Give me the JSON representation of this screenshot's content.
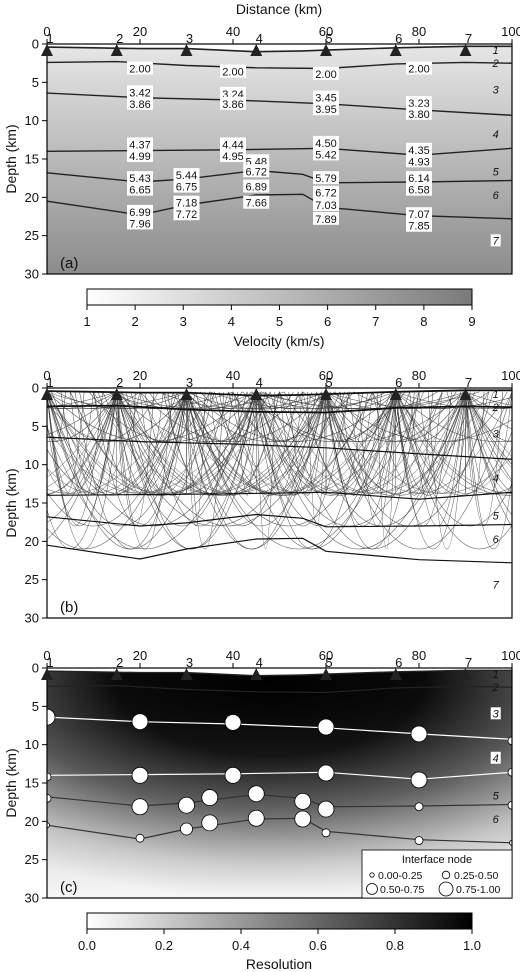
{
  "figure": {
    "top_axis_title": "Distance (km)",
    "y_axis_title": "Depth (km)",
    "x_ticks": [
      0,
      20,
      40,
      60,
      80,
      100
    ],
    "y_ticks": [
      0,
      5,
      10,
      15,
      20,
      25,
      30
    ],
    "stations": [
      {
        "label": "1",
        "x": 0
      },
      {
        "label": "2",
        "x": 15
      },
      {
        "label": "3",
        "x": 30
      },
      {
        "label": "4",
        "x": 45
      },
      {
        "label": "5",
        "x": 60
      },
      {
        "label": "6",
        "x": 75
      },
      {
        "label": "7",
        "x": 90
      }
    ],
    "layer_labels": [
      {
        "label": "1",
        "x": 96.5,
        "y": 1.2
      },
      {
        "label": "2",
        "x": 96.5,
        "y": 2.9
      },
      {
        "label": "3",
        "x": 96.5,
        "y": 6.3
      },
      {
        "label": "4",
        "x": 96.5,
        "y": 12.1
      },
      {
        "label": "5",
        "x": 96.5,
        "y": 17.0
      },
      {
        "label": "6",
        "x": 96.5,
        "y": 20.1
      },
      {
        "label": "7",
        "x": 96.5,
        "y": 26.0
      }
    ]
  },
  "chart_data": [
    {
      "type": "heatmap",
      "panel_label": "(a)",
      "xlabel": "Distance (km)",
      "ylabel": "Depth (km)",
      "xlim": [
        0,
        100
      ],
      "ylim": [
        30,
        0
      ],
      "interfaces": [
        {
          "name": "topography",
          "points": [
            [
              0,
              0.4
            ],
            [
              10,
              0.5
            ],
            [
              20,
              0.6
            ],
            [
              30,
              0.6
            ],
            [
              45,
              1.0
            ],
            [
              55,
              0.9
            ],
            [
              60,
              0.8
            ],
            [
              75,
              0.5
            ],
            [
              90,
              0.3
            ],
            [
              100,
              0.3
            ]
          ]
        },
        {
          "name": "interface-1",
          "points": [
            [
              0,
              2.4
            ],
            [
              15,
              2.3
            ],
            [
              30,
              2.8
            ],
            [
              45,
              3.1
            ],
            [
              60,
              3.2
            ],
            [
              75,
              2.6
            ],
            [
              90,
              2.4
            ],
            [
              100,
              2.5
            ]
          ]
        },
        {
          "name": "interface-2",
          "points": [
            [
              0,
              6.4
            ],
            [
              20,
              7.0
            ],
            [
              40,
              7.3
            ],
            [
              60,
              7.8
            ],
            [
              80,
              8.6
            ],
            [
              100,
              9.3
            ]
          ]
        },
        {
          "name": "interface-3",
          "points": [
            [
              0,
              14.0
            ],
            [
              20,
              13.9
            ],
            [
              40,
              13.8
            ],
            [
              60,
              13.6
            ],
            [
              80,
              14.5
            ],
            [
              100,
              13.6
            ]
          ]
        },
        {
          "name": "interface-4",
          "points": [
            [
              0,
              16.8
            ],
            [
              20,
              18.0
            ],
            [
              30,
              17.6
            ],
            [
              45,
              16.5
            ],
            [
              55,
              17.0
            ],
            [
              60,
              18.1
            ],
            [
              80,
              18.0
            ],
            [
              100,
              17.8
            ]
          ]
        },
        {
          "name": "interface-5",
          "points": [
            [
              0,
              20.5
            ],
            [
              20,
              22.3
            ],
            [
              30,
              21.0
            ],
            [
              45,
              19.7
            ],
            [
              55,
              19.6
            ],
            [
              60,
              21.3
            ],
            [
              80,
              22.4
            ],
            [
              100,
              22.8
            ]
          ]
        }
      ],
      "velocity_labels": [
        {
          "text": "2.00",
          "x": 20,
          "y": 3.2
        },
        {
          "text": "2.00",
          "x": 40,
          "y": 3.6
        },
        {
          "text": "2.00",
          "x": 60,
          "y": 3.9
        },
        {
          "text": "2.00",
          "x": 80,
          "y": 3.2
        },
        {
          "text": "3.42",
          "x": 20,
          "y": 6.3
        },
        {
          "text": "3.86",
          "x": 20,
          "y": 7.8
        },
        {
          "text": "3.24",
          "x": 40,
          "y": 6.5
        },
        {
          "text": "3.86",
          "x": 40,
          "y": 7.8
        },
        {
          "text": "3.45",
          "x": 60,
          "y": 7.0
        },
        {
          "text": "3.95",
          "x": 60,
          "y": 8.5
        },
        {
          "text": "3.23",
          "x": 80,
          "y": 7.7
        },
        {
          "text": "3.80",
          "x": 80,
          "y": 9.1
        },
        {
          "text": "4.37",
          "x": 20,
          "y": 13.1
        },
        {
          "text": "4.99",
          "x": 20,
          "y": 14.6
        },
        {
          "text": "4.44",
          "x": 40,
          "y": 13.1
        },
        {
          "text": "4.95",
          "x": 40,
          "y": 14.6
        },
        {
          "text": "4.50",
          "x": 60,
          "y": 12.9
        },
        {
          "text": "5.42",
          "x": 60,
          "y": 14.4
        },
        {
          "text": "4.35",
          "x": 80,
          "y": 13.8
        },
        {
          "text": "4.93",
          "x": 80,
          "y": 15.3
        },
        {
          "text": "5.48",
          "x": 45,
          "y": 15.3
        },
        {
          "text": "5.43",
          "x": 20,
          "y": 17.5
        },
        {
          "text": "6.65",
          "x": 20,
          "y": 19.0
        },
        {
          "text": "5.44",
          "x": 30,
          "y": 17.1
        },
        {
          "text": "6.75",
          "x": 30,
          "y": 18.6
        },
        {
          "text": "6.72",
          "x": 45,
          "y": 16.6
        },
        {
          "text": "6.89",
          "x": 45,
          "y": 18.6
        },
        {
          "text": "5.79",
          "x": 60,
          "y": 17.5
        },
        {
          "text": "6.72",
          "x": 60,
          "y": 19.4
        },
        {
          "text": "6.14",
          "x": 80,
          "y": 17.5
        },
        {
          "text": "6.58",
          "x": 80,
          "y": 19.0
        },
        {
          "text": "7.18",
          "x": 30,
          "y": 20.7
        },
        {
          "text": "7.72",
          "x": 30,
          "y": 22.2
        },
        {
          "text": "7.66",
          "x": 45,
          "y": 20.7
        },
        {
          "text": "6.99",
          "x": 20,
          "y": 21.9
        },
        {
          "text": "7.96",
          "x": 20,
          "y": 23.4
        },
        {
          "text": "7.03",
          "x": 60,
          "y": 21.0
        },
        {
          "text": "7.89",
          "x": 60,
          "y": 22.8
        },
        {
          "text": "7.07",
          "x": 80,
          "y": 22.2
        },
        {
          "text": "7.85",
          "x": 80,
          "y": 23.7
        }
      ],
      "colorbar": {
        "label": "Velocity (km/s)",
        "min": 1,
        "max": 9,
        "ticks": [
          1,
          2,
          3,
          4,
          5,
          6,
          7,
          8,
          9
        ]
      }
    },
    {
      "type": "line",
      "panel_label": "(b)",
      "xlabel": "",
      "ylabel": "Depth (km)",
      "xlim": [
        0,
        100
      ],
      "ylim": [
        30,
        0
      ],
      "ray_reflectors": [
        2.7,
        7.0,
        14.0,
        18.0,
        21.0
      ],
      "stations_x": [
        0,
        15,
        30,
        45,
        60,
        75,
        90
      ]
    },
    {
      "type": "heatmap",
      "panel_label": "(c)",
      "xlabel": "",
      "ylabel": "Depth (km)",
      "xlim": [
        0,
        100
      ],
      "ylim": [
        30,
        0
      ],
      "interface_nodes": [
        {
          "interface": 2,
          "x": 0,
          "y": 6.4,
          "r": 0.95
        },
        {
          "interface": 2,
          "x": 20,
          "y": 7.0,
          "r": 0.9
        },
        {
          "interface": 2,
          "x": 40,
          "y": 7.1,
          "r": 0.85
        },
        {
          "interface": 2,
          "x": 60,
          "y": 7.7,
          "r": 0.85
        },
        {
          "interface": 2,
          "x": 80,
          "y": 8.6,
          "r": 0.85
        },
        {
          "interface": 2,
          "x": 100,
          "y": 9.5,
          "r": 0.4
        },
        {
          "interface": 3,
          "x": 0,
          "y": 14.2,
          "r": 0.35
        },
        {
          "interface": 3,
          "x": 20,
          "y": 14.0,
          "r": 0.9
        },
        {
          "interface": 3,
          "x": 40,
          "y": 14.0,
          "r": 0.9
        },
        {
          "interface": 3,
          "x": 60,
          "y": 13.7,
          "r": 0.9
        },
        {
          "interface": 3,
          "x": 80,
          "y": 14.6,
          "r": 0.9
        },
        {
          "interface": 3,
          "x": 100,
          "y": 13.6,
          "r": 0.3
        },
        {
          "interface": 4,
          "x": 0,
          "y": 17.0,
          "r": 0.35
        },
        {
          "interface": 4,
          "x": 20,
          "y": 18.1,
          "r": 0.85
        },
        {
          "interface": 4,
          "x": 30,
          "y": 17.9,
          "r": 0.85
        },
        {
          "interface": 4,
          "x": 35,
          "y": 16.9,
          "r": 0.85
        },
        {
          "interface": 4,
          "x": 45,
          "y": 16.4,
          "r": 0.95
        },
        {
          "interface": 4,
          "x": 55,
          "y": 17.4,
          "r": 0.85
        },
        {
          "interface": 4,
          "x": 60,
          "y": 18.4,
          "r": 0.85
        },
        {
          "interface": 4,
          "x": 80,
          "y": 18.1,
          "r": 0.45
        },
        {
          "interface": 4,
          "x": 100,
          "y": 17.9,
          "r": 0.3
        },
        {
          "interface": 5,
          "x": 0,
          "y": 20.5,
          "r": 0.2
        },
        {
          "interface": 5,
          "x": 20,
          "y": 22.2,
          "r": 0.35
        },
        {
          "interface": 5,
          "x": 30,
          "y": 21.0,
          "r": 0.5
        },
        {
          "interface": 5,
          "x": 35,
          "y": 20.2,
          "r": 0.8
        },
        {
          "interface": 5,
          "x": 45,
          "y": 19.6,
          "r": 0.9
        },
        {
          "interface": 5,
          "x": 55,
          "y": 19.7,
          "r": 0.85
        },
        {
          "interface": 5,
          "x": 60,
          "y": 21.5,
          "r": 0.4
        },
        {
          "interface": 5,
          "x": 80,
          "y": 22.5,
          "r": 0.35
        },
        {
          "interface": 5,
          "x": 100,
          "y": 22.8,
          "r": 0.2
        }
      ],
      "legend": {
        "title": "Interface node",
        "entries": [
          "0.00-0.25",
          "0.25-0.50",
          "0.50-0.75",
          "0.75-1.00"
        ],
        "position": "bottom-right"
      },
      "colorbar": {
        "label": "Resolution",
        "min": 0,
        "max": 1,
        "ticks": [
          "0.0",
          "0.2",
          "0.4",
          "0.6",
          "0.8",
          "1.0"
        ]
      }
    }
  ]
}
